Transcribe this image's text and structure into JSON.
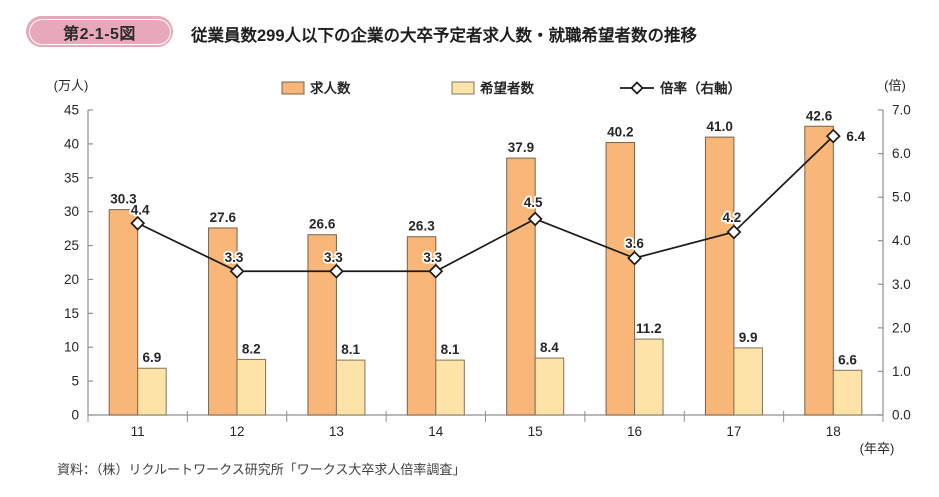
{
  "figure": {
    "badge": "第2-1-5図",
    "title": "従業員数299人以下の企業の大卒予定者求人数・就職希望者数の推移",
    "source": "資料：（株）リクルートワークス研究所「ワークス大卒求人倍率調査」"
  },
  "colors": {
    "badge_bg": "#e7a9ba",
    "badge_inner_border": "#ffffff",
    "bar_kyujin_fill": "#f8b679",
    "bar_kyujin_stroke": "#77624c",
    "bar_kibou_fill": "#fde3a7",
    "bar_kibou_stroke": "#80745a",
    "line": "#1a1a1a",
    "marker_fill": "#ffffff",
    "axis": "#8f8f8f",
    "text": "#262626"
  },
  "chart_data": {
    "type": "bar",
    "subtype": "grouped-bars-with-line-on-secondary-axis",
    "categories": [
      "11",
      "12",
      "13",
      "14",
      "15",
      "16",
      "17",
      "18"
    ],
    "x_axis_note": "(年卒)",
    "series": [
      {
        "name": "求人数",
        "type": "bar",
        "axis": "left",
        "values": [
          30.3,
          27.6,
          26.6,
          26.3,
          37.9,
          40.2,
          41.0,
          42.6
        ]
      },
      {
        "name": "希望者数",
        "type": "bar",
        "axis": "left",
        "values": [
          6.9,
          8.2,
          8.1,
          8.1,
          8.4,
          11.2,
          9.9,
          6.6
        ]
      },
      {
        "name": "倍率（右軸）",
        "type": "line",
        "axis": "right",
        "values": [
          4.4,
          3.3,
          3.3,
          3.3,
          4.5,
          3.6,
          4.2,
          6.4
        ]
      }
    ],
    "left_axis": {
      "unit": "(万人)",
      "min": 0,
      "max": 45,
      "step": 5
    },
    "right_axis": {
      "unit": "(倍)",
      "min": 0,
      "max": 7,
      "step": 1
    },
    "legend_position": "top",
    "grid": false,
    "data_labels": true
  }
}
